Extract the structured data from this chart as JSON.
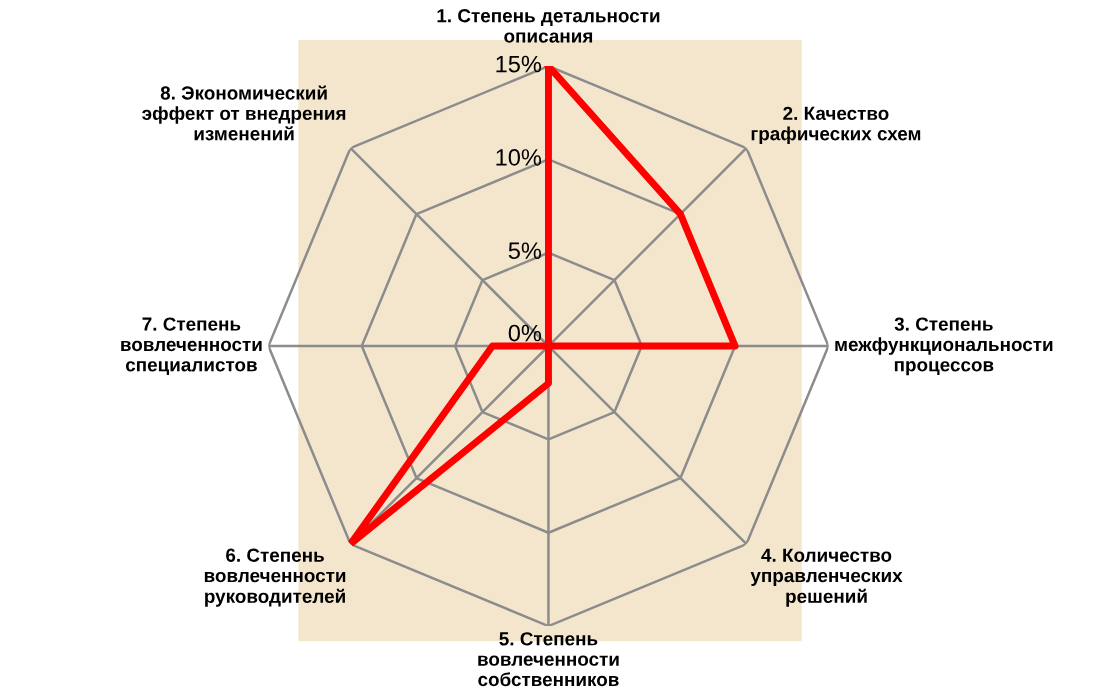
{
  "chart_data": {
    "type": "radar",
    "categories": [
      "1. Степень детальности\nописания",
      "2. Качество\nграфических схем",
      "3. Степень\nмежфункциональности\nпроцессов",
      "4. Количество\nуправленческих\nрешений",
      "5. Степень\nвовлеченности\nсобственников",
      "6. Степень\nвовлеченности\nруководителей",
      "7. Степень\nвовлеченности\nспециалистов",
      "8. Экономический\nэффект от внедрения\nизменений"
    ],
    "series": [
      {
        "color": "#ff0000",
        "values": [
          15,
          10,
          10,
          0,
          2,
          15,
          3,
          0
        ]
      }
    ],
    "ylim": [
      0,
      15
    ],
    "yticks": [
      {
        "value": 0,
        "label": "0%"
      },
      {
        "value": 5,
        "label": "5%"
      },
      {
        "value": 10,
        "label": "10%"
      },
      {
        "value": 15,
        "label": "15%"
      }
    ],
    "grid": true,
    "marker": "none",
    "line_style": "solid",
    "legend": false
  }
}
